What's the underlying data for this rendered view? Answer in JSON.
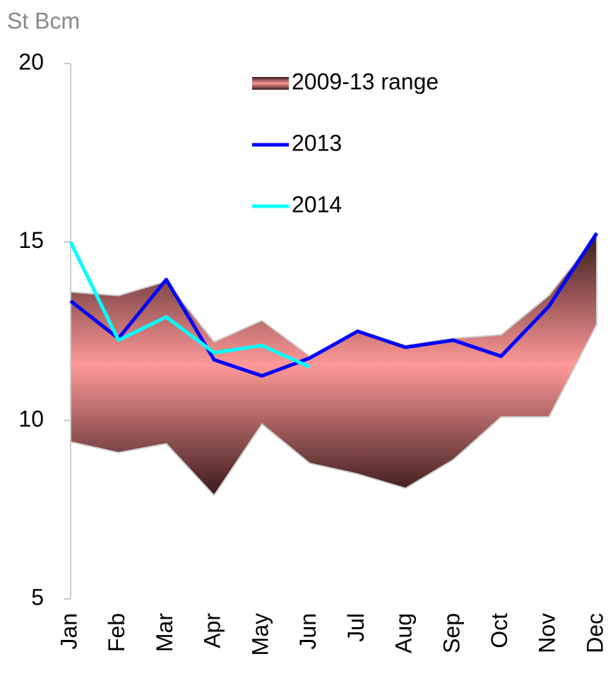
{
  "chart_data": {
    "type": "line",
    "y_axis_label": "St Bcm",
    "categories": [
      "Jan",
      "Feb",
      "Mar",
      "Apr",
      "May",
      "Jun",
      "Jul",
      "Aug",
      "Sep",
      "Oct",
      "Nov",
      "Dec"
    ],
    "ylim": [
      5,
      20
    ],
    "yticks": [
      5,
      10,
      15,
      20
    ],
    "legend": "top-right",
    "range": {
      "name": "2009-13 range",
      "color": "#ff9999",
      "edge_color": "#3a1a1a",
      "upper": [
        13.6,
        13.5,
        13.9,
        12.2,
        12.8,
        11.8,
        12.5,
        12.1,
        12.3,
        12.4,
        13.5,
        15.2
      ],
      "lower": [
        9.4,
        9.1,
        9.35,
        7.9,
        9.9,
        8.8,
        8.5,
        8.1,
        8.9,
        10.1,
        10.1,
        12.7
      ]
    },
    "series": [
      {
        "name": "2013",
        "color": "#0000ff",
        "values": [
          13.35,
          12.3,
          13.95,
          11.7,
          11.25,
          11.75,
          12.5,
          12.05,
          12.25,
          11.8,
          13.2,
          15.25
        ]
      },
      {
        "name": "2014",
        "color": "#00ffff",
        "values": [
          15.0,
          12.25,
          12.9,
          11.9,
          12.1,
          11.5,
          null,
          null,
          null,
          null,
          null,
          null
        ]
      }
    ]
  }
}
